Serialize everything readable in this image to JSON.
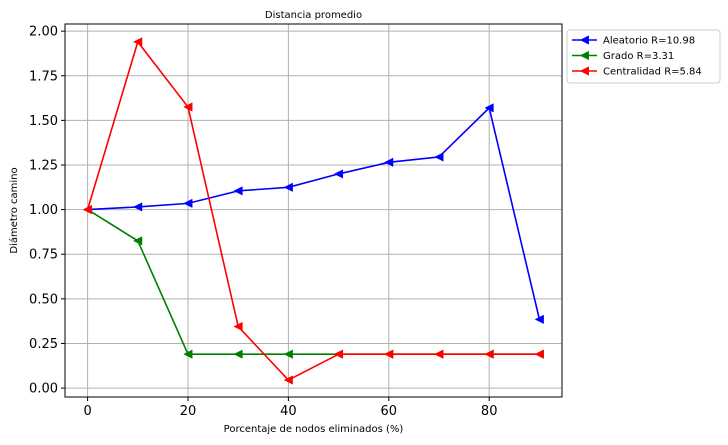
{
  "chart_data": {
    "type": "line",
    "title": "Distancia promedio",
    "xlabel": "Porcentaje de nodos eliminados (%)",
    "ylabel": "Diámetro camino",
    "xlim": [
      -4.5,
      94.5
    ],
    "ylim": [
      -0.05,
      2.04
    ],
    "xticks": [
      0,
      20,
      40,
      60,
      80
    ],
    "yticks": [
      0.0,
      0.25,
      0.5,
      0.75,
      1.0,
      1.25,
      1.5,
      1.75,
      2.0
    ],
    "xtick_labels": [
      "0",
      "20",
      "40",
      "60",
      "80"
    ],
    "ytick_labels": [
      "0.00",
      "0.25",
      "0.50",
      "0.75",
      "1.00",
      "1.25",
      "1.50",
      "1.75",
      "2.00"
    ],
    "grid": true,
    "legend_position": "outside-top-right",
    "marker": "left-triangle",
    "x": [
      0,
      10,
      20,
      30,
      40,
      50,
      60,
      70,
      80,
      90
    ],
    "series": [
      {
        "name": "Aleatorio R=10.98",
        "color": "#0000ff",
        "values": [
          1.0,
          1.015,
          1.035,
          1.105,
          1.125,
          1.2,
          1.265,
          1.295,
          1.57,
          0.385
        ]
      },
      {
        "name": "Grado R=3.31",
        "color": "#008000",
        "values": [
          1.0,
          0.825,
          0.19,
          0.19,
          0.19,
          0.19,
          0.19,
          0.19,
          0.19,
          0.19
        ]
      },
      {
        "name": "Centralidad R=5.84",
        "color": "#ff0000",
        "values": [
          1.0,
          1.94,
          1.575,
          0.345,
          0.045,
          0.19,
          0.19,
          0.19,
          0.19,
          0.19
        ]
      }
    ]
  }
}
